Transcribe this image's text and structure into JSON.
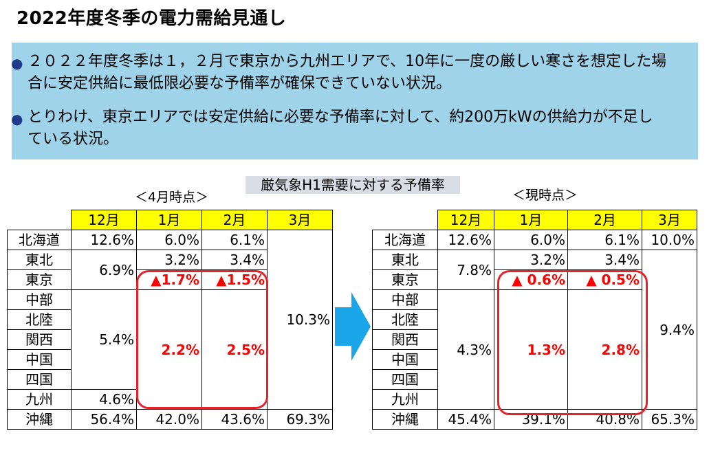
{
  "title": "2022年度冬季の電力需給見通し",
  "bullets": [
    "２０２２年度冬季は１，２月で東京から九州エリアで、10年に一度の厳しい寒さを想定した場合に安定供給に最低限必要な予備率が確保できていない状況。",
    "とりわけ、東京エリアでは安定供給に必要な予備率に対して、約200万kWの供給力が不足している状況。"
  ],
  "section_title": "厳気象H1需要に対する予備率",
  "months": [
    "12月",
    "1月",
    "2月",
    "3月"
  ],
  "left_table": {
    "caption": "＜4月時点＞",
    "regions": [
      "北海道",
      "東北",
      "東京",
      "中部",
      "北陸",
      "関西",
      "中国",
      "四国",
      "九州",
      "沖縄"
    ],
    "hokkaido": [
      "12.6%",
      "6.0%",
      "6.1%"
    ],
    "tohoku_dec_tokyo": "6.9%",
    "tohoku": [
      "3.2%",
      "3.4%"
    ],
    "tokyo": [
      "▲1.7%",
      "▲1.5%"
    ],
    "chubu_shikoku_dec": "5.4%",
    "chubu_kyushu": [
      "2.2%",
      "2.5%"
    ],
    "mar_hokkaido_kyushu": "10.3%",
    "kyushu_dec": "4.6%",
    "okinawa": [
      "56.4%",
      "42.0%",
      "43.6%",
      "69.3%"
    ]
  },
  "right_table": {
    "caption": "＜現時点＞",
    "regions": [
      "北海道",
      "東北",
      "東京",
      "中部",
      "北陸",
      "関西",
      "中国",
      "四国",
      "九州",
      "沖縄"
    ],
    "hokkaido": [
      "12.6%",
      "6.0%",
      "6.1%",
      "10.0%"
    ],
    "tohoku_dec_tokyo": "7.8%",
    "tohoku": [
      "3.2%",
      "3.4%"
    ],
    "tokyo": [
      "▲ 0.6%",
      "▲ 0.5%"
    ],
    "chubu_kyushu_dec": "4.3%",
    "chubu_kyushu": [
      "1.3%",
      "2.8%"
    ],
    "mar_tohoku_kyushu": "9.4%",
    "okinawa": [
      "45.4%",
      "39.1%",
      "40.8%",
      "65.3%"
    ]
  },
  "colors": {
    "summary_bg": "#9fd3ea",
    "header_yellow": "#ffff00",
    "highlight_red": "#e8202a",
    "arrow_blue": "#1aa6e8"
  },
  "icons": {
    "arrow": "right-arrow-icon"
  }
}
